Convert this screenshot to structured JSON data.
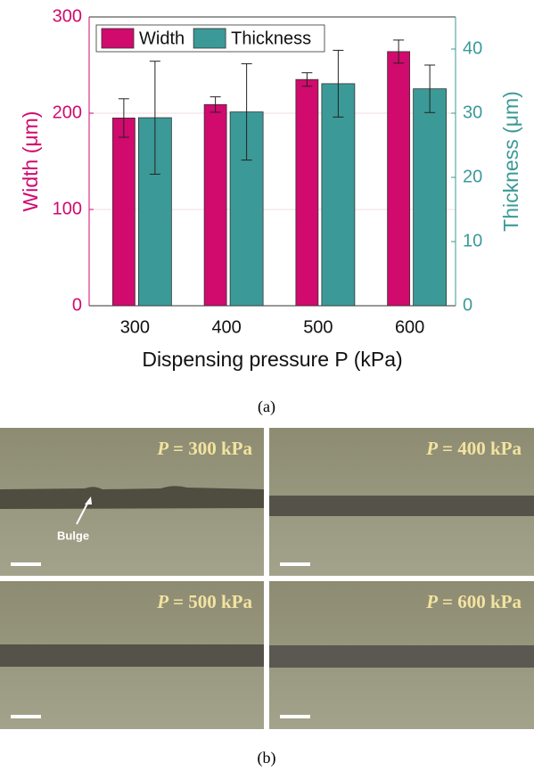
{
  "chart_data": {
    "type": "bar",
    "categories": [
      "300",
      "400",
      "500",
      "600"
    ],
    "x_label": "Dispensing pressure P (kPa)",
    "y_label": "Width (μm)",
    "y2_label": "Thickness (μm)",
    "ylim": [
      0,
      300
    ],
    "yticks": [
      0,
      100,
      200,
      300
    ],
    "y2lim": [
      0,
      45
    ],
    "y2ticks": [
      0,
      10,
      20,
      30,
      40
    ],
    "grid": true,
    "legend": "upper left",
    "series": [
      {
        "name": "Width",
        "color": "#d10a6e",
        "values": [
          195,
          209,
          235,
          264
        ],
        "errors": [
          20,
          8,
          7,
          12
        ]
      },
      {
        "name": "Thickness",
        "color": "#3b9a97",
        "axis": "y2",
        "values": [
          29.3,
          30.2,
          34.6,
          33.8
        ],
        "errors": [
          8.8,
          7.5,
          5.2,
          3.7
        ]
      }
    ],
    "caption": "(a)"
  },
  "micrographs": {
    "caption": "(b)",
    "annotation": "Bulge",
    "panels": [
      {
        "variable": "P",
        "text": "= 300 kPa"
      },
      {
        "variable": "P",
        "text": "= 400 kPa"
      },
      {
        "variable": "P",
        "text": "= 500 kPa"
      },
      {
        "variable": "P",
        "text": "= 600 kPa"
      }
    ]
  }
}
